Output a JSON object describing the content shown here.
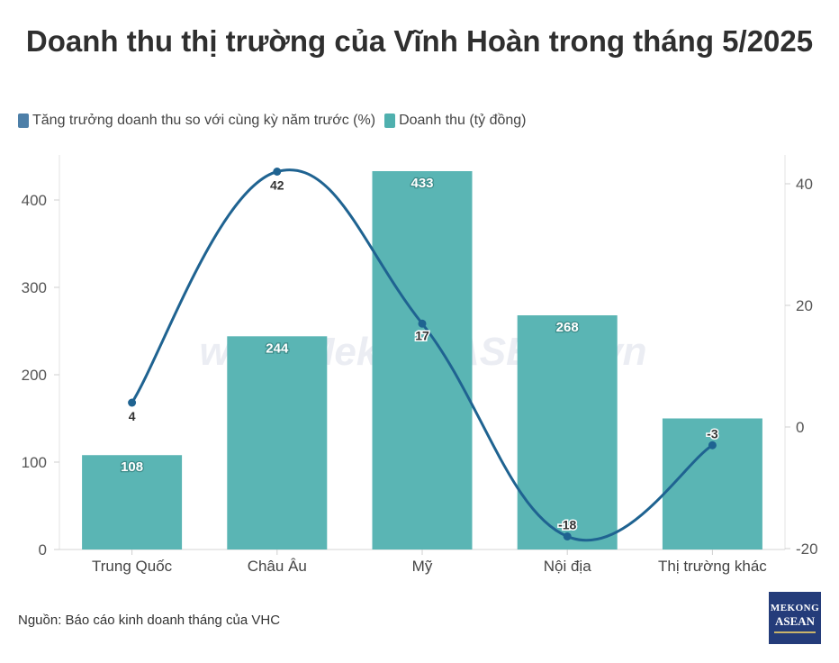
{
  "chart_data": {
    "type": "bar",
    "title": "Doanh thu thị trường của Vĩnh Hoàn trong tháng 5/2025",
    "categories": [
      "Trung Quốc",
      "Châu Âu",
      "Mỹ",
      "Nội địa",
      "Thị trường khác"
    ],
    "series": [
      {
        "name": "Doanh thu (tỷ đồng)",
        "type": "bar",
        "axis": "left",
        "color": "#5ab5b4",
        "values": [
          108,
          244,
          433,
          268,
          150
        ],
        "labels": [
          "108",
          "244",
          "433",
          "268",
          ""
        ]
      },
      {
        "name": "Tăng trưởng doanh thu so với cùng kỳ năm trước (%)",
        "type": "line",
        "axis": "right",
        "color": "#1f6391",
        "values": [
          4,
          42,
          17,
          -18,
          -3
        ],
        "labels": [
          "4",
          "42",
          "17",
          "-18",
          "-3"
        ]
      }
    ],
    "y_left": {
      "ylim": [
        0,
        450
      ],
      "ticks": [
        "0",
        "100",
        "200",
        "300",
        "400"
      ],
      "tick_values": [
        0,
        100,
        200,
        300,
        400
      ]
    },
    "y_right": {
      "ylim": [
        -20,
        44
      ],
      "ticks": [
        "-20",
        "0",
        "20",
        "40"
      ],
      "tick_values": [
        -20,
        0,
        20,
        40
      ]
    },
    "legend_position": "top-left",
    "grid": false,
    "watermark": "www.MekongASEAN.vn"
  },
  "source": "Nguồn: Báo cáo kinh doanh tháng của VHC",
  "logo": {
    "line1": "MEKONG",
    "line2": "ASEAN"
  }
}
